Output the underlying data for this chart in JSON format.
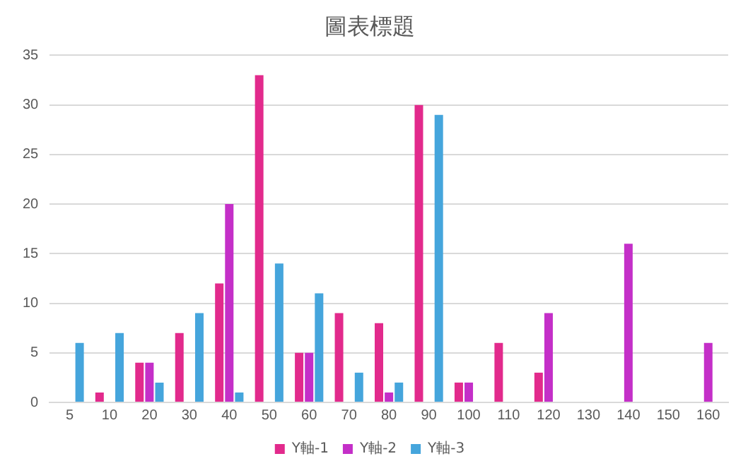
{
  "chart_data": {
    "type": "bar",
    "title": "圖表標題",
    "categories": [
      "5",
      "10",
      "20",
      "30",
      "40",
      "50",
      "60",
      "70",
      "80",
      "90",
      "100",
      "110",
      "120",
      "130",
      "140",
      "150",
      "160"
    ],
    "series": [
      {
        "name": "Y軸-1",
        "color": "#e22a8c",
        "values": [
          null,
          1,
          4,
          7,
          12,
          33,
          5,
          9,
          8,
          30,
          2,
          6,
          3,
          null,
          null,
          null,
          null
        ]
      },
      {
        "name": "Y軸-2",
        "color": "#c42fc8",
        "values": [
          null,
          null,
          4,
          null,
          20,
          null,
          5,
          null,
          1,
          null,
          2,
          null,
          9,
          null,
          16,
          null,
          6
        ]
      },
      {
        "name": "Y軸-3",
        "color": "#45a5dc",
        "values": [
          6,
          7,
          2,
          9,
          1,
          14,
          11,
          3,
          2,
          29,
          null,
          null,
          null,
          null,
          null,
          null,
          null
        ]
      }
    ],
    "ylim": [
      0,
      35
    ],
    "yticks": [
      0,
      5,
      10,
      15,
      20,
      25,
      30,
      35
    ],
    "grid": "y",
    "legend": "bottom"
  }
}
